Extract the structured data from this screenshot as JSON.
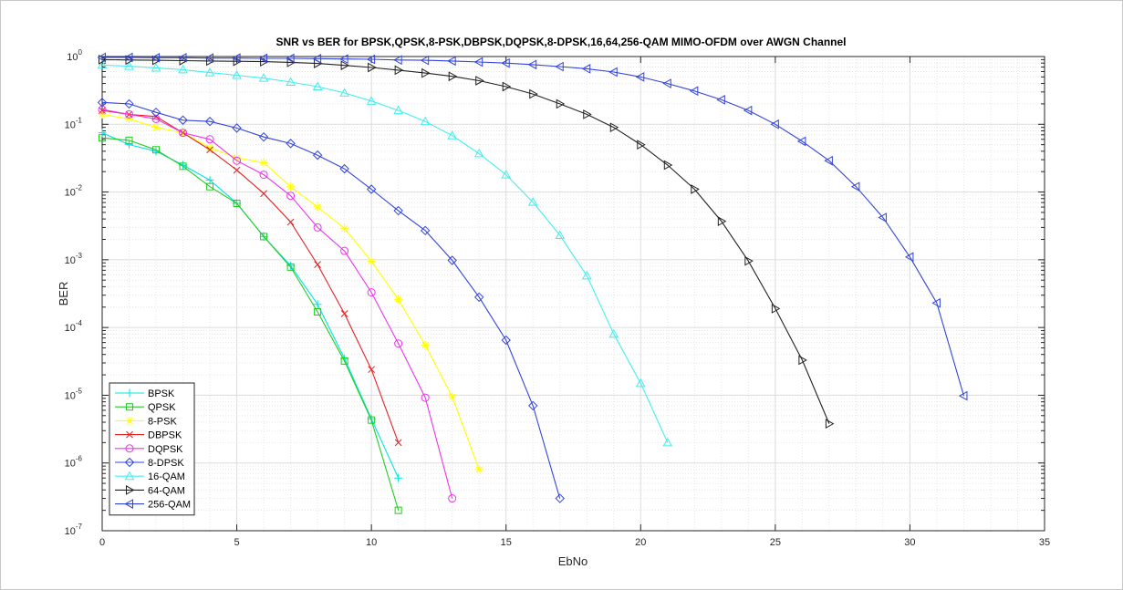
{
  "chart_data": {
    "type": "line",
    "title": "SNR vs BER for BPSK,QPSK,8-PSK,DBPSK,DQPSK,8-DPSK,16,64,256-QAM MIMO-OFDM over AWGN Channel",
    "xlabel": "EbNo",
    "ylabel": "BER",
    "xlim": [
      0,
      35
    ],
    "ylim_log10": [
      -7,
      0
    ],
    "yscale": "log",
    "grid": true,
    "minor_grid": true,
    "legend_position": "bottom-left",
    "x_ticks": [
      "0",
      "5",
      "10",
      "15",
      "20",
      "25",
      "30",
      "35"
    ],
    "y_ticks": [
      {
        "base": "10",
        "exp": "-7"
      },
      {
        "base": "10",
        "exp": "-6"
      },
      {
        "base": "10",
        "exp": "-5"
      },
      {
        "base": "10",
        "exp": "-4"
      },
      {
        "base": "10",
        "exp": "-3"
      },
      {
        "base": "10",
        "exp": "-2"
      },
      {
        "base": "10",
        "exp": "-1"
      },
      {
        "base": "10",
        "exp": "0"
      }
    ],
    "series": [
      {
        "name": "BPSK",
        "color": "#00e5e5",
        "marker": "plus",
        "x": [
          0,
          1,
          2,
          3,
          4,
          5,
          6,
          7,
          8,
          9,
          10,
          11
        ],
        "y": [
          0.075,
          0.05,
          0.04,
          0.025,
          0.015,
          0.0068,
          0.0022,
          0.00082,
          0.00022,
          3.5e-05,
          4.5e-06,
          6e-07
        ]
      },
      {
        "name": "QPSK",
        "color": "#22cc22",
        "marker": "square",
        "x": [
          0,
          1,
          2,
          3,
          4,
          5,
          6,
          7,
          8,
          9,
          10,
          11
        ],
        "y": [
          0.063,
          0.058,
          0.042,
          0.024,
          0.012,
          0.0068,
          0.0022,
          0.00078,
          0.00017,
          3.2e-05,
          4.3e-06,
          2e-07
        ]
      },
      {
        "name": "8-PSK",
        "color": "#ffff00",
        "marker": "asterisk",
        "x": [
          0,
          1,
          2,
          3,
          4,
          5,
          6,
          7,
          8,
          9,
          10,
          11,
          12,
          13,
          14
        ],
        "y": [
          0.14,
          0.12,
          0.09,
          0.075,
          0.045,
          0.032,
          0.027,
          0.012,
          0.006,
          0.0029,
          0.00095,
          0.00026,
          5.5e-05,
          9.5e-06,
          8e-07
        ]
      },
      {
        "name": "DBPSK",
        "color": "#e52222",
        "marker": "x",
        "x": [
          0,
          1,
          2,
          3,
          4,
          5,
          6,
          7,
          8,
          9,
          10,
          11
        ],
        "y": [
          0.16,
          0.14,
          0.13,
          0.075,
          0.042,
          0.021,
          0.0095,
          0.0036,
          0.00085,
          0.00016,
          2.4e-05,
          2e-06
        ]
      },
      {
        "name": "DQPSK",
        "color": "#ee33ee",
        "marker": "circle",
        "x": [
          0,
          1,
          2,
          3,
          4,
          5,
          6,
          7,
          8,
          9,
          10,
          11,
          12,
          13
        ],
        "y": [
          0.165,
          0.14,
          0.12,
          0.075,
          0.06,
          0.029,
          0.018,
          0.0088,
          0.003,
          0.00135,
          0.00033,
          5.8e-05,
          9.2e-06,
          3e-07
        ]
      },
      {
        "name": "8-DPSK",
        "color": "#3344dd",
        "marker": "diamond",
        "x": [
          0,
          1,
          2,
          3,
          4,
          5,
          6,
          7,
          8,
          9,
          10,
          11,
          12,
          13,
          14,
          15,
          16,
          17
        ],
        "y": [
          0.21,
          0.2,
          0.15,
          0.115,
          0.11,
          0.088,
          0.065,
          0.052,
          0.035,
          0.022,
          0.011,
          0.0053,
          0.0027,
          0.00098,
          0.00028,
          6.5e-05,
          7e-06,
          3e-07
        ]
      },
      {
        "name": "16-QAM",
        "color": "#44eeee",
        "marker": "triangle-up",
        "x": [
          0,
          1,
          2,
          3,
          4,
          5,
          6,
          7,
          8,
          9,
          10,
          11,
          12,
          13,
          14,
          15,
          16,
          17,
          18,
          19,
          20,
          21
        ],
        "y": [
          0.75,
          0.72,
          0.68,
          0.64,
          0.58,
          0.53,
          0.48,
          0.42,
          0.36,
          0.29,
          0.22,
          0.16,
          0.11,
          0.068,
          0.037,
          0.018,
          0.0071,
          0.0023,
          0.00058,
          8e-05,
          1.5e-05,
          2e-06
        ]
      },
      {
        "name": "64-QAM",
        "color": "#222222",
        "marker": "triangle-right",
        "x": [
          0,
          1,
          2,
          3,
          4,
          5,
          6,
          7,
          8,
          9,
          10,
          11,
          12,
          13,
          14,
          15,
          16,
          17,
          18,
          19,
          20,
          21,
          22,
          23,
          24,
          25,
          26,
          27
        ],
        "y": [
          0.9,
          0.89,
          0.88,
          0.87,
          0.86,
          0.85,
          0.84,
          0.82,
          0.79,
          0.74,
          0.69,
          0.63,
          0.57,
          0.51,
          0.44,
          0.36,
          0.28,
          0.2,
          0.14,
          0.09,
          0.05,
          0.025,
          0.011,
          0.0037,
          0.00096,
          0.00019,
          3.3e-05,
          3.8e-06
        ]
      },
      {
        "name": "256-QAM",
        "color": "#3344dd",
        "marker": "triangle-left",
        "x": [
          0,
          1,
          2,
          3,
          4,
          5,
          6,
          7,
          8,
          9,
          10,
          11,
          12,
          13,
          14,
          15,
          16,
          17,
          18,
          19,
          20,
          21,
          22,
          23,
          24,
          25,
          26,
          27,
          28,
          29,
          30,
          31,
          32
        ],
        "y": [
          0.97,
          0.97,
          0.96,
          0.96,
          0.95,
          0.95,
          0.94,
          0.94,
          0.93,
          0.92,
          0.91,
          0.89,
          0.88,
          0.86,
          0.83,
          0.8,
          0.76,
          0.71,
          0.66,
          0.59,
          0.5,
          0.4,
          0.31,
          0.23,
          0.16,
          0.1,
          0.056,
          0.029,
          0.012,
          0.0042,
          0.0011,
          0.00023,
          9.8e-06
        ]
      }
    ]
  }
}
